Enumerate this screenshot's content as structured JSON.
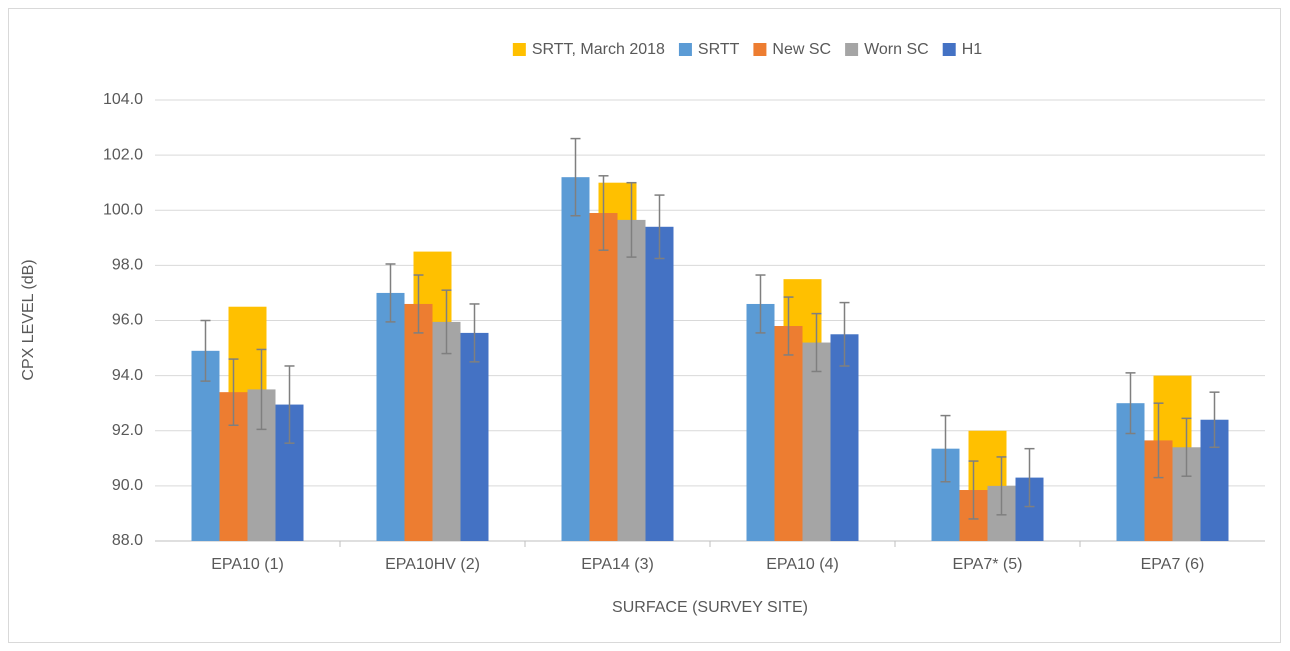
{
  "chart_data": {
    "type": "bar",
    "x_label": "SURFACE (SURVEY SITE)",
    "y_label": "CPX LEVEL (dB)",
    "categories": [
      "EPA10 (1)",
      "EPA10HV (2)",
      "EPA14 (3)",
      "EPA10 (4)",
      "EPA7* (5)",
      "EPA7 (6)"
    ],
    "series": [
      {
        "name": "SRTT, March 2018",
        "color": "#ffc000",
        "values": [
          96.5,
          98.5,
          101.0,
          97.5,
          92.0,
          94.0
        ]
      },
      {
        "name": "SRTT",
        "color": "#5b9bd5",
        "values": [
          94.9,
          97.0,
          101.2,
          96.6,
          91.35,
          93.0
        ],
        "errors": [
          1.1,
          1.05,
          1.4,
          1.05,
          1.2,
          1.1
        ]
      },
      {
        "name": "New SC",
        "color": "#ed7d31",
        "values": [
          93.4,
          96.6,
          99.9,
          95.8,
          89.85,
          91.65
        ],
        "errors": [
          1.2,
          1.05,
          1.35,
          1.05,
          1.05,
          1.35
        ]
      },
      {
        "name": "Worn SC",
        "color": "#a5a5a5",
        "values": [
          93.5,
          95.95,
          99.65,
          95.2,
          90.0,
          91.4
        ],
        "errors": [
          1.45,
          1.15,
          1.35,
          1.05,
          1.05,
          1.05
        ]
      },
      {
        "name": "H1",
        "color": "#4472c4",
        "values": [
          92.95,
          95.55,
          99.4,
          95.5,
          90.3,
          92.4
        ],
        "errors": [
          1.4,
          1.05,
          1.15,
          1.15,
          1.05,
          1.0
        ]
      }
    ],
    "ylim": [
      88,
      104
    ],
    "yticks": [
      {
        "value": 88,
        "label": "88.0"
      },
      {
        "value": 90,
        "label": "90.0"
      },
      {
        "value": 92,
        "label": "92.0"
      },
      {
        "value": 94,
        "label": "94.0"
      },
      {
        "value": 96,
        "label": "96.0"
      },
      {
        "value": 98,
        "label": "98.0"
      },
      {
        "value": 100,
        "label": "100.0"
      },
      {
        "value": 102,
        "label": "102.0"
      },
      {
        "value": 104,
        "label": "104.0"
      }
    ],
    "grid": true,
    "legend": "top",
    "error_bar_color": "#7f7f7f"
  }
}
